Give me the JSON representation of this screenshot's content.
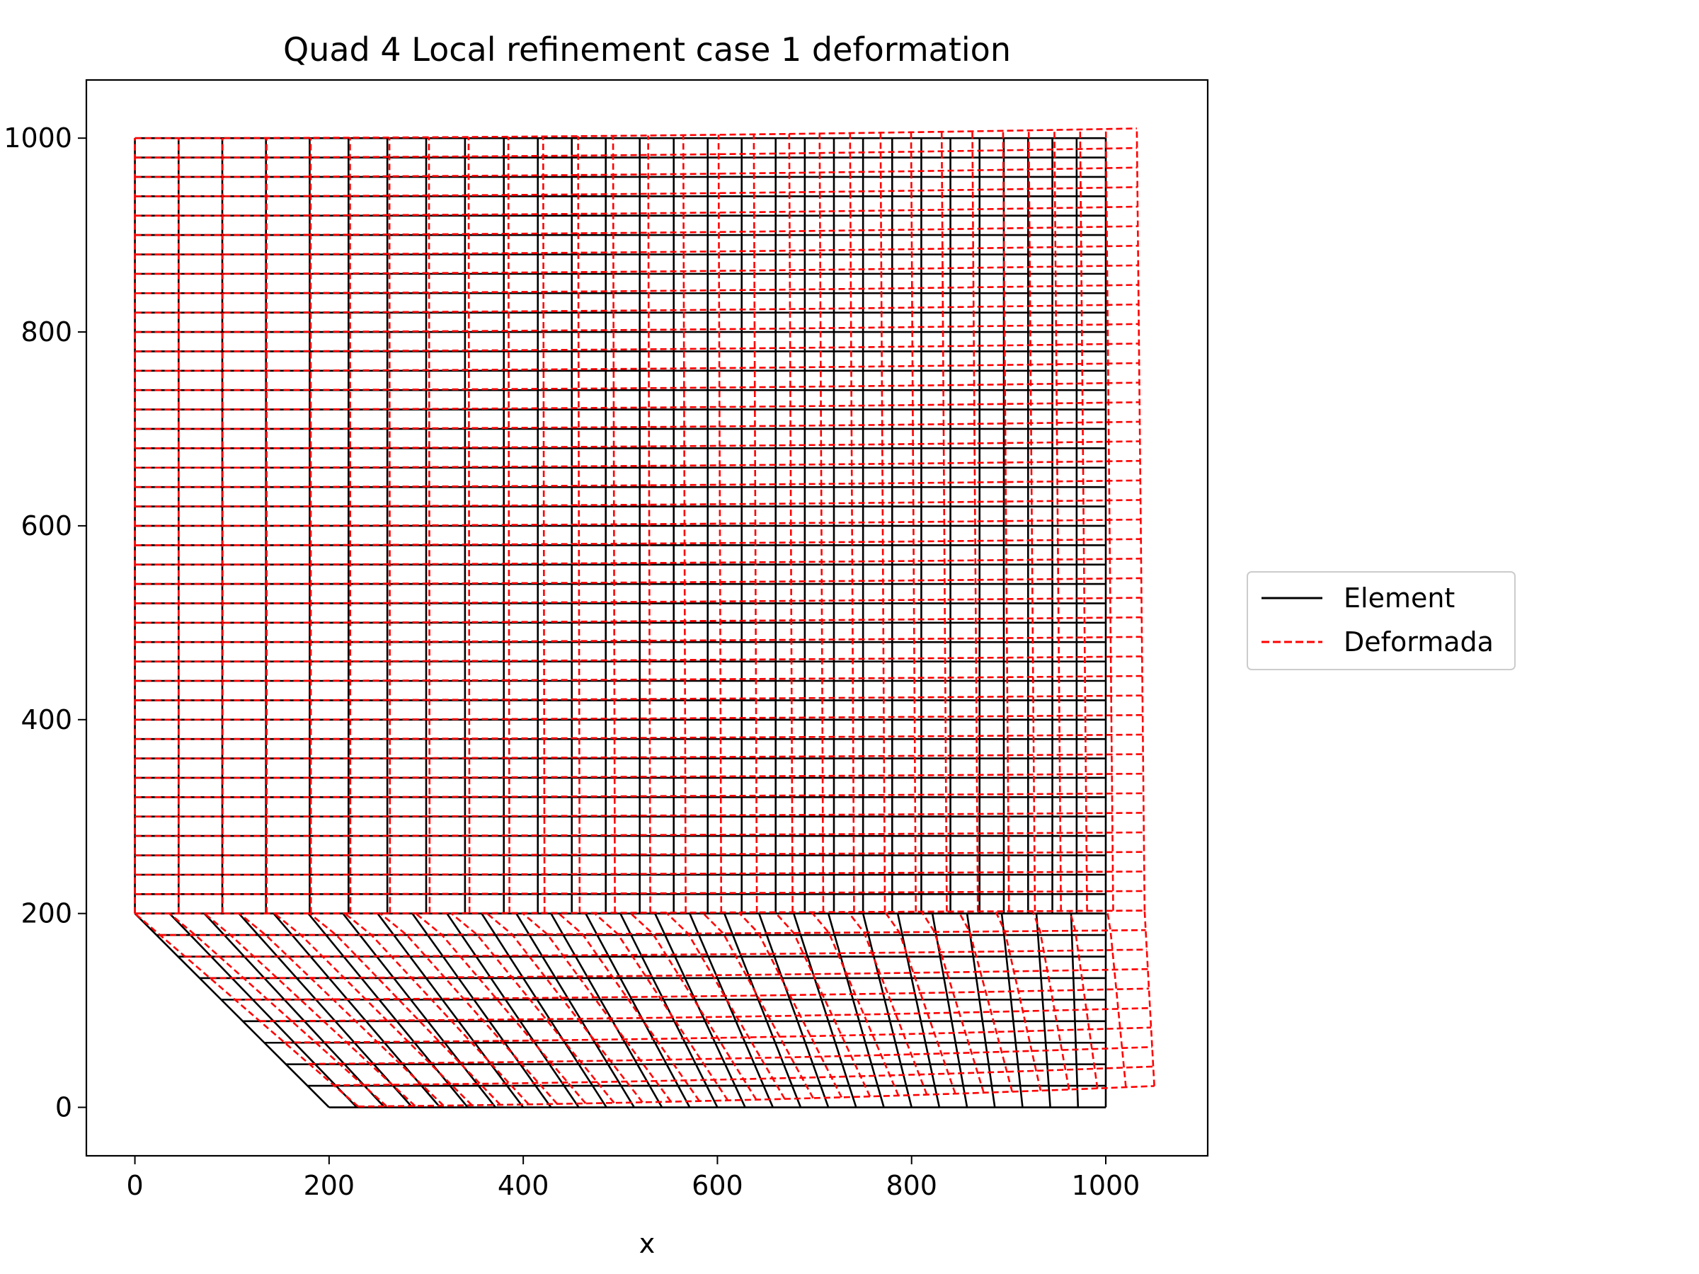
{
  "chart_data": {
    "type": "line",
    "title": "Quad 4 Local refinement case 1 deformation",
    "xlabel": "x",
    "ylabel": "",
    "xlim": [
      -50,
      1105
    ],
    "ylim": [
      -50,
      1060
    ],
    "xticks": [
      0,
      200,
      400,
      600,
      800,
      1000
    ],
    "yticks": [
      0,
      200,
      400,
      600,
      800,
      1000
    ],
    "xtick_labels": [
      "0",
      "200",
      "400",
      "600",
      "800",
      "1000"
    ],
    "ytick_labels": [
      "0",
      "200",
      "400",
      "600",
      "800",
      "1000"
    ],
    "grid": false,
    "legend": {
      "placement": "center-right-outside",
      "entries": [
        "Element",
        "Deformada"
      ]
    },
    "mesh": {
      "upper_region": {
        "x_lines": [
          0,
          45,
          90,
          135,
          180,
          220,
          260,
          300,
          340,
          380,
          415,
          450,
          485,
          520,
          555,
          590,
          625,
          660,
          690,
          720,
          750,
          780,
          810,
          840,
          870,
          895,
          920,
          945,
          970,
          1000
        ],
        "y_range": [
          200,
          1000
        ],
        "n_y_divisions": 40
      },
      "lower_region": {
        "bottom_x_start": 200,
        "x_end": 1000,
        "y_range": [
          0,
          200
        ],
        "n_x_divisions": 28,
        "n_y_divisions": 9
      }
    },
    "deformation": {
      "corners": [
        {
          "label": "(0,1000)",
          "dx": 0,
          "dy": 0
        },
        {
          "label": "(1000,1000)",
          "dx": 32,
          "dy": 10
        },
        {
          "label": "(1000,200)",
          "dx": 40,
          "dy": 3
        },
        {
          "label": "(1000,0)",
          "dx": 50,
          "dy": 22
        },
        {
          "label": "(200,0)",
          "dx": 25,
          "dy": 0
        },
        {
          "label": "(0,200)",
          "dx": 0,
          "dy": 0
        }
      ]
    },
    "series": [
      {
        "name": "Element",
        "color": "#000000",
        "style": "solid"
      },
      {
        "name": "Deformada",
        "color": "#ff0000",
        "style": "dashed"
      }
    ]
  }
}
